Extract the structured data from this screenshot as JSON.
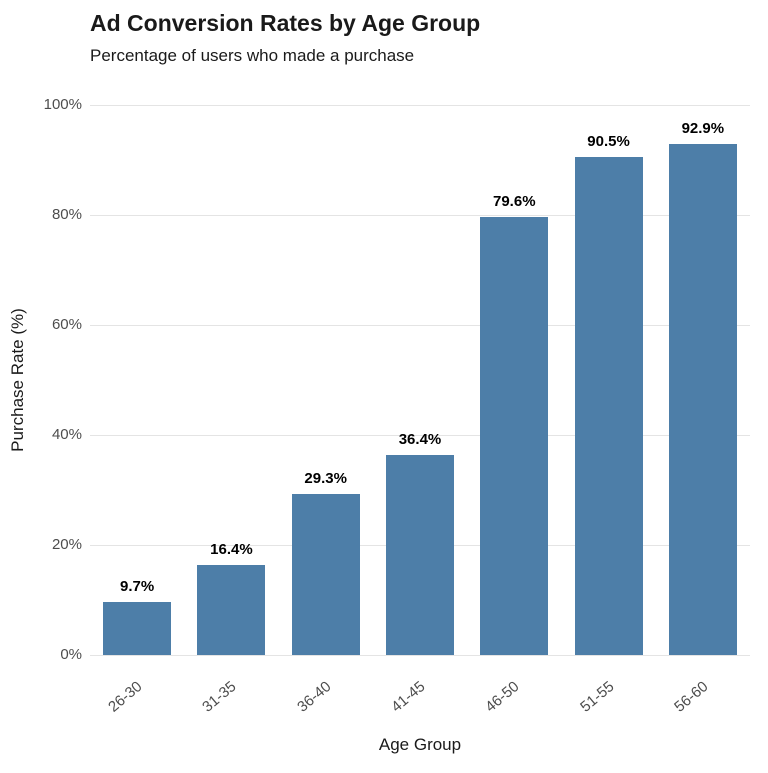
{
  "chart_data": {
    "type": "bar",
    "title": "Ad Conversion Rates by Age Group",
    "subtitle": "Percentage of users who made a purchase",
    "xlabel": "Age Group",
    "ylabel": "Purchase Rate (%)",
    "categories": [
      "26-30",
      "31-35",
      "36-40",
      "41-45",
      "46-50",
      "51-55",
      "56-60"
    ],
    "values": [
      9.7,
      16.4,
      29.3,
      36.4,
      79.6,
      90.5,
      92.9
    ],
    "value_labels": [
      "9.7%",
      "16.4%",
      "29.3%",
      "36.4%",
      "79.6%",
      "90.5%",
      "92.9%"
    ],
    "ylim": [
      0,
      100
    ],
    "yticks": [
      0,
      20,
      40,
      60,
      80,
      100
    ],
    "ytick_labels": [
      "0%",
      "20%",
      "40%",
      "60%",
      "80%",
      "100%"
    ],
    "grid": true,
    "legend": "none",
    "bar_color": "#4d7ea8",
    "gridline_color": "#e4e4e4",
    "background_color": "#ffffff"
  }
}
